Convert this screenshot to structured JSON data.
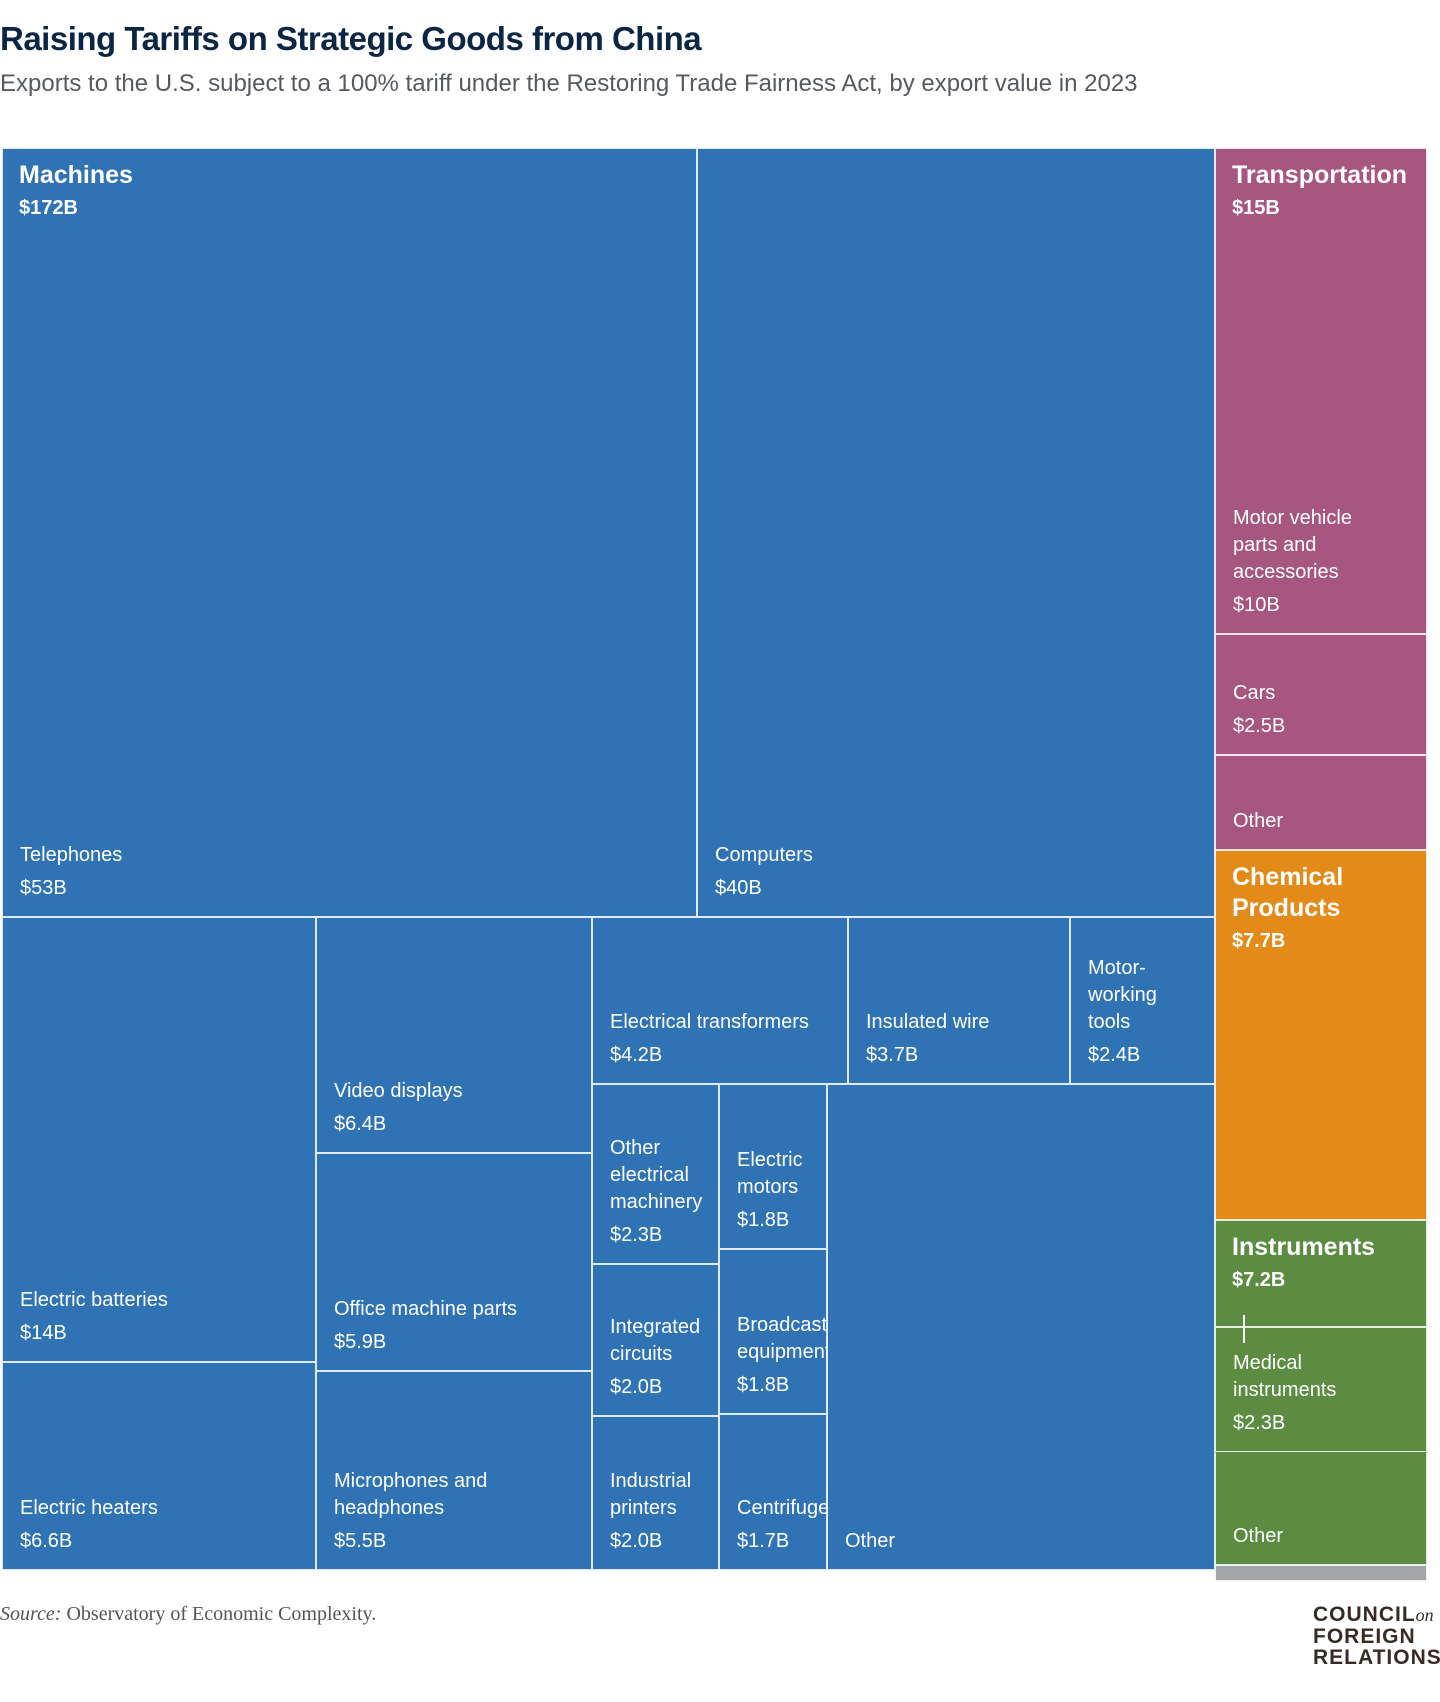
{
  "header": {
    "title": "Raising Tariffs on Strategic Goods from China",
    "subtitle": "Exports to the U.S. subject to a 100% tariff under the Restoring Trade Fairness Act, by export value in 2023"
  },
  "footer": {
    "source_label": "Source:",
    "source_text": "Observatory of Economic Complexity.",
    "logo": [
      "COUNCIL",
      "on",
      "FOREIGN",
      "RELATIONS"
    ]
  },
  "chart_data": {
    "type": "treemap",
    "title": "Raising Tariffs on Strategic Goods from China",
    "unit": "USD billions",
    "categories": [
      {
        "name": "Machines",
        "value_label": "$172B",
        "value": 172,
        "color": "#2f73b4",
        "items": [
          {
            "name": "Telephones",
            "value_label": "$53B",
            "value": 53
          },
          {
            "name": "Computers",
            "value_label": "$40B",
            "value": 40
          },
          {
            "name": "Electric batteries",
            "value_label": "$14B",
            "value": 14
          },
          {
            "name": "Electric heaters",
            "value_label": "$6.6B",
            "value": 6.6
          },
          {
            "name": "Video displays",
            "value_label": "$6.4B",
            "value": 6.4
          },
          {
            "name": "Office machine parts",
            "value_label": "$5.9B",
            "value": 5.9
          },
          {
            "name": "Microphones and\nheadphones",
            "value_label": "$5.5B",
            "value": 5.5
          },
          {
            "name": "Electrical transformers",
            "value_label": "$4.2B",
            "value": 4.2
          },
          {
            "name": "Insulated wire",
            "value_label": "$3.7B",
            "value": 3.7
          },
          {
            "name": "Motor-\nworking\ntools",
            "value_label": "$2.4B",
            "value": 2.4
          },
          {
            "name": "Other\nelectrical\nmachinery",
            "value_label": "$2.3B",
            "value": 2.3
          },
          {
            "name": "Integrated\ncircuits",
            "value_label": "$2.0B",
            "value": 2.0
          },
          {
            "name": "Industrial\nprinters",
            "value_label": "$2.0B",
            "value": 2.0
          },
          {
            "name": "Electric\nmotors",
            "value_label": "$1.8B",
            "value": 1.8
          },
          {
            "name": "Broadcasting\nequipment",
            "value_label": "$1.8B",
            "value": 1.8
          },
          {
            "name": "Centrifuges",
            "value_label": "$1.7B",
            "value": 1.7
          },
          {
            "name": "Other",
            "value_label": "",
            "value": null
          }
        ]
      },
      {
        "name": "Transportation",
        "value_label": "$15B",
        "value": 15,
        "color": "#a6567f",
        "items": [
          {
            "name": "Motor vehicle\nparts and\naccessories",
            "value_label": "$10B",
            "value": 10
          },
          {
            "name": "Cars",
            "value_label": "$2.5B",
            "value": 2.5
          },
          {
            "name": "Other",
            "value_label": "",
            "value": null
          }
        ]
      },
      {
        "name": "Chemical\nProducts",
        "value_label": "$7.7B",
        "value": 7.7,
        "color": "#e48a19",
        "items": [
          {
            "name": "",
            "value_label": "",
            "value": 7.7
          }
        ]
      },
      {
        "name": "Instruments",
        "value_label": "$7.2B",
        "value": 7.2,
        "color": "#5b8c42",
        "items": [
          {
            "name": "",
            "value_label": "",
            "value": null
          },
          {
            "name": "Medical\ninstruments",
            "value_label": "$2.3B",
            "value": 2.3
          },
          {
            "name": "Other",
            "value_label": "",
            "value": null
          }
        ]
      },
      {
        "name": "",
        "value_label": "",
        "value": null,
        "color": "#a3a5a7",
        "items": [
          {
            "name": "",
            "value_label": "",
            "value": null
          }
        ]
      }
    ]
  }
}
